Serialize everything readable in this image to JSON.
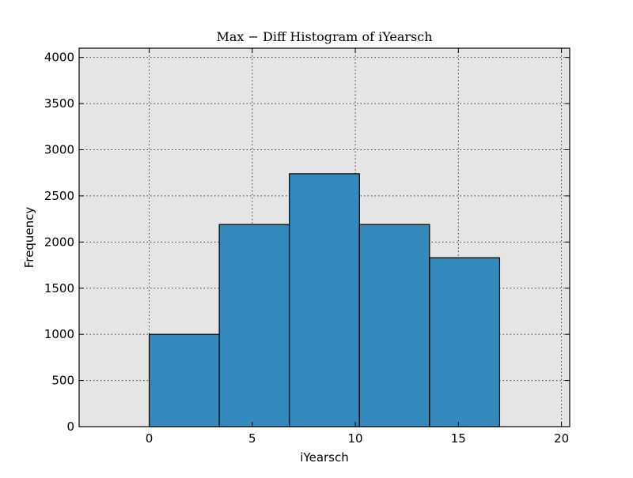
{
  "chart_data": {
    "type": "bar",
    "title": "Max − Diff Histogram of iYearsch",
    "xlabel": "iYearsch",
    "ylabel": "Frequency",
    "xlim": [
      -3.4,
      20.4
    ],
    "ylim": [
      0,
      4100
    ],
    "xticks": [
      0,
      5,
      10,
      15,
      20
    ],
    "yticks": [
      0,
      500,
      1000,
      1500,
      2000,
      2500,
      3000,
      3500,
      4000
    ],
    "grid": true,
    "bins": [
      {
        "x0": 0.0,
        "x1": 3.4,
        "value": 1000
      },
      {
        "x0": 3.4,
        "x1": 6.8,
        "value": 2190
      },
      {
        "x0": 6.8,
        "x1": 10.2,
        "value": 2740
      },
      {
        "x0": 10.2,
        "x1": 13.6,
        "value": 2190
      },
      {
        "x0": 13.6,
        "x1": 17.0,
        "value": 1830
      }
    ],
    "colors": {
      "bar_fill": "#348abd",
      "bar_edge": "#000000",
      "plot_bg": "#e5e5e5",
      "grid": "#3a3a3a"
    }
  }
}
